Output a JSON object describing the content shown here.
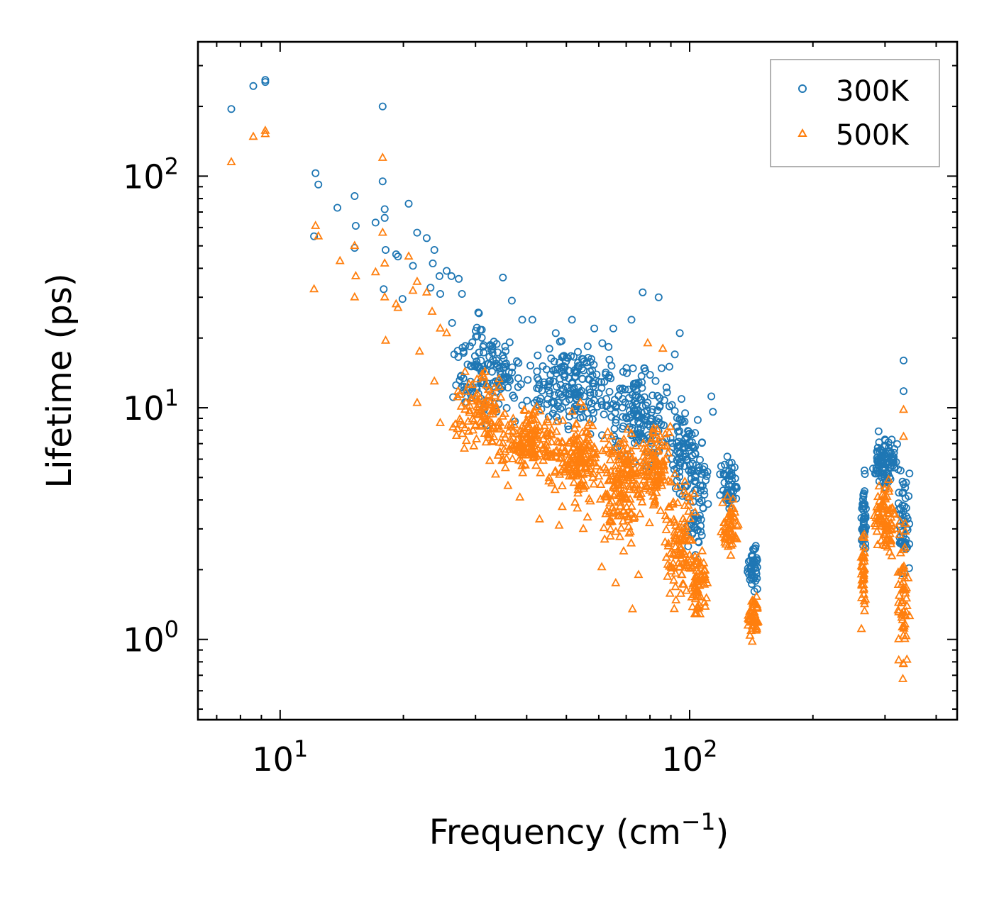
{
  "chart_data": {
    "type": "scatter",
    "title": "",
    "xlabel": {
      "text": "Frequency (cm",
      "sup": "−1",
      "suffix": ")"
    },
    "ylabel": "Lifetime (ps)",
    "xscale": "log",
    "yscale": "log",
    "xlim": [
      6.3,
      450
    ],
    "ylim": [
      0.45,
      380
    ],
    "xticks": [
      {
        "value": 10,
        "base": "10",
        "exp": "1"
      },
      {
        "value": 100,
        "base": "10",
        "exp": "2"
      }
    ],
    "yticks": [
      {
        "value": 1,
        "base": "10",
        "exp": "0"
      },
      {
        "value": 10,
        "base": "10",
        "exp": "1"
      },
      {
        "value": 100,
        "base": "10",
        "exp": "2"
      }
    ],
    "legend": {
      "position": "top-right"
    },
    "series": [
      {
        "name": "300K",
        "marker": "circle",
        "color": "#1f77b4",
        "seed": 11,
        "points": [
          [
            7.6,
            195
          ],
          [
            8.6,
            245
          ],
          [
            9.2,
            260
          ],
          [
            9.2,
            255
          ],
          [
            12.2,
            103
          ],
          [
            12.4,
            92
          ],
          [
            12.1,
            55
          ],
          [
            13.8,
            73
          ],
          [
            15.2,
            82
          ],
          [
            15.3,
            61
          ],
          [
            15.2,
            49
          ],
          [
            17.1,
            63
          ],
          [
            17.8,
            200
          ],
          [
            17.8,
            95
          ],
          [
            18.0,
            72
          ],
          [
            18.0,
            66
          ],
          [
            18.1,
            48
          ],
          [
            19.2,
            46
          ],
          [
            19.4,
            45
          ],
          [
            20.6,
            76
          ],
          [
            21.1,
            41
          ],
          [
            21.6,
            57
          ],
          [
            22.8,
            54
          ],
          [
            23.8,
            48
          ],
          [
            23.6,
            42
          ],
          [
            24.5,
            37
          ],
          [
            25.5,
            39
          ],
          [
            26.2,
            37
          ],
          [
            27.3,
            36
          ],
          [
            17.9,
            32.5
          ],
          [
            19.9,
            29.5
          ],
          [
            23.3,
            33
          ],
          [
            24.6,
            31
          ],
          [
            27.8,
            31
          ],
          [
            35.0,
            36.5
          ],
          [
            36.8,
            29
          ],
          [
            39.0,
            24
          ],
          [
            41.3,
            24
          ],
          [
            47.1,
            21
          ],
          [
            51.6,
            24
          ],
          [
            58.5,
            22
          ],
          [
            61.2,
            19
          ],
          [
            65.1,
            22
          ],
          [
            72.1,
            24
          ],
          [
            76.8,
            31.5
          ],
          [
            84.0,
            30
          ],
          [
            92.0,
            17
          ],
          [
            94.6,
            21
          ],
          [
            113,
            11.2
          ],
          [
            114,
            9.6
          ],
          [
            333,
            16
          ],
          [
            333,
            11.8
          ]
        ],
        "clusters": [
          {
            "f": [
              26,
              41
            ],
            "l": [
              7.5,
              28
            ],
            "n": 150
          },
          {
            "f": [
              40,
              66
            ],
            "l": [
              7,
              22
            ],
            "n": 190
          },
          {
            "f": [
              62,
              92
            ],
            "l": [
              4.5,
              19
            ],
            "n": 160
          },
          {
            "f": [
              88,
              108
            ],
            "l": [
              3,
              14
            ],
            "n": 90
          },
          {
            "f": [
              97,
              112
            ],
            "l": [
              1.8,
              9
            ],
            "n": 60
          },
          {
            "f": [
              118,
              132
            ],
            "l": [
              3,
              7
            ],
            "n": 55
          },
          {
            "f": [
              138,
              148
            ],
            "l": [
              1.5,
              2.8
            ],
            "n": 45
          },
          {
            "f": [
              262,
              270
            ],
            "l": [
              1.8,
              6
            ],
            "n": 45
          },
          {
            "f": [
              280,
              322
            ],
            "l": [
              4,
              8.5
            ],
            "n": 90
          },
          {
            "f": [
              320,
              346
            ],
            "l": [
              1.6,
              6.5
            ],
            "n": 55
          }
        ]
      },
      {
        "name": "500K",
        "marker": "triangle",
        "color": "#ff7f0e",
        "seed": 29,
        "points": [
          [
            7.6,
            115
          ],
          [
            8.6,
            148
          ],
          [
            9.2,
            157
          ],
          [
            9.2,
            152
          ],
          [
            12.2,
            61
          ],
          [
            12.4,
            55
          ],
          [
            12.1,
            32.5
          ],
          [
            14.0,
            43
          ],
          [
            15.2,
            50
          ],
          [
            15.3,
            37
          ],
          [
            15.2,
            30
          ],
          [
            17.1,
            38.5
          ],
          [
            17.8,
            120
          ],
          [
            17.8,
            57
          ],
          [
            18.0,
            42
          ],
          [
            18.0,
            30
          ],
          [
            18.1,
            19.5
          ],
          [
            19.2,
            28
          ],
          [
            19.4,
            27
          ],
          [
            20.6,
            45
          ],
          [
            21.1,
            32
          ],
          [
            21.6,
            35
          ],
          [
            22.8,
            31.5
          ],
          [
            23.5,
            26
          ],
          [
            24.6,
            22
          ],
          [
            25.5,
            21
          ],
          [
            21.6,
            10.5
          ],
          [
            21.9,
            17.5
          ],
          [
            23.8,
            13
          ],
          [
            24.6,
            8.6
          ],
          [
            27.1,
            8.1
          ],
          [
            28.5,
            7.2
          ],
          [
            32.5,
            5.9
          ],
          [
            36.0,
            4.6
          ],
          [
            38.5,
            4.1
          ],
          [
            43.0,
            3.3
          ],
          [
            48.0,
            3.1
          ],
          [
            55.0,
            3.0
          ],
          [
            62.0,
            2.7
          ],
          [
            69.0,
            2.4
          ],
          [
            72.0,
            2.6
          ],
          [
            75.0,
            1.9
          ],
          [
            72.5,
            1.35
          ],
          [
            66.0,
            1.75
          ],
          [
            61.0,
            2.05
          ],
          [
            79.0,
            19
          ],
          [
            86.0,
            18
          ],
          [
            333,
            9.8
          ],
          [
            333,
            7.5
          ]
        ],
        "clusters": [
          {
            "f": [
              26,
              38
            ],
            "l": [
              5.5,
              16
            ],
            "n": 110
          },
          {
            "f": [
              33,
              50
            ],
            "l": [
              4.5,
              11
            ],
            "n": 170
          },
          {
            "f": [
              46,
              62
            ],
            "l": [
              3.2,
              11
            ],
            "n": 160
          },
          {
            "f": [
              60,
              78
            ],
            "l": [
              2.2,
              9.5
            ],
            "n": 170
          },
          {
            "f": [
              75,
              92
            ],
            "l": [
              2.8,
              10
            ],
            "n": 110
          },
          {
            "f": [
              85,
              105
            ],
            "l": [
              1.1,
              6
            ],
            "n": 110
          },
          {
            "f": [
              98,
              112
            ],
            "l": [
              1.0,
              3
            ],
            "n": 60
          },
          {
            "f": [
              118,
              132
            ],
            "l": [
              2.0,
              4.8
            ],
            "n": 55
          },
          {
            "f": [
              138,
              148
            ],
            "l": [
              0.92,
              1.6
            ],
            "n": 45
          },
          {
            "f": [
              262,
              270
            ],
            "l": [
              1.05,
              3.6
            ],
            "n": 40
          },
          {
            "f": [
              280,
              322
            ],
            "l": [
              2.0,
              5.5
            ],
            "n": 85
          },
          {
            "f": [
              320,
              346
            ],
            "l": [
              0.55,
              4
            ],
            "n": 60
          }
        ]
      }
    ]
  }
}
